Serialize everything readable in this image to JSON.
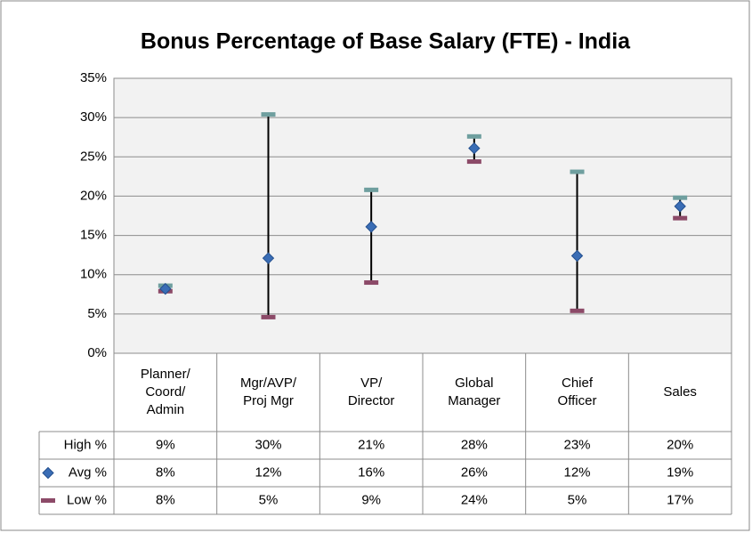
{
  "chart_data": {
    "type": "hilo",
    "title": "Bonus Percentage of Base Salary (FTE) - India",
    "categories": [
      [
        "Planner/",
        "Coord/",
        "Admin"
      ],
      [
        "Mgr/AVP/",
        "Proj Mgr"
      ],
      [
        "VP/",
        "Director"
      ],
      [
        "Global",
        "Manager"
      ],
      [
        "Chief",
        "Officer"
      ],
      [
        "Sales"
      ]
    ],
    "series": [
      {
        "name": "High %",
        "color": "#6f9f9f",
        "marker": "dash",
        "values": [
          8.6,
          30.4,
          20.8,
          27.6,
          23.1,
          19.8
        ],
        "value_labels": [
          "9%",
          "30%",
          "21%",
          "28%",
          "23%",
          "20%"
        ]
      },
      {
        "name": "Avg %",
        "color": "#3a6db5",
        "marker": "diamond",
        "values": [
          8.2,
          12.1,
          16.1,
          26.1,
          12.4,
          18.7
        ],
        "value_labels": [
          "8%",
          "12%",
          "16%",
          "26%",
          "12%",
          "19%"
        ]
      },
      {
        "name": "Low %",
        "color": "#8c4a68",
        "marker": "dash",
        "values": [
          7.9,
          4.6,
          9.0,
          24.4,
          5.4,
          17.2
        ],
        "value_labels": [
          "8%",
          "5%",
          "9%",
          "24%",
          "5%",
          "17%"
        ]
      }
    ],
    "ylim": [
      0,
      35
    ],
    "yticks": [
      {
        "value": 0,
        "label": "0%"
      },
      {
        "value": 5,
        "label": "5%"
      },
      {
        "value": 10,
        "label": "10%"
      },
      {
        "value": 15,
        "label": "15%"
      },
      {
        "value": 20,
        "label": "20%"
      },
      {
        "value": 25,
        "label": "25%"
      },
      {
        "value": 30,
        "label": "30%"
      },
      {
        "value": 35,
        "label": "35%"
      }
    ],
    "grid": true
  }
}
